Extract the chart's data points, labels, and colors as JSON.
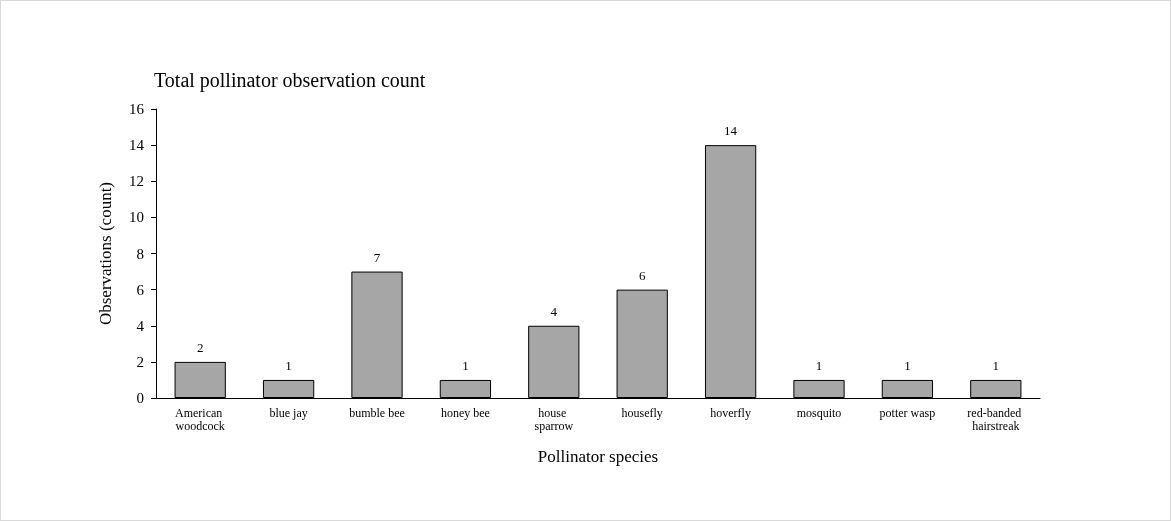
{
  "chart_data": {
    "type": "bar",
    "title": "Total pollinator observation count",
    "xlabel": "Pollinator species",
    "ylabel": "Observations (count)",
    "categories": [
      "American woodcock",
      "blue jay",
      "bumble bee",
      "honey bee",
      "house sparrow",
      "housefly",
      "hoverfly",
      "mosquito",
      "potter wasp",
      "red-banded hairstreak"
    ],
    "values": [
      2,
      1,
      7,
      1,
      4,
      6,
      14,
      1,
      1,
      1
    ],
    "color": "#a6a6a6",
    "ylim": [
      0,
      16
    ],
    "yticks": [
      0,
      2,
      4,
      6,
      8,
      10,
      12,
      14,
      16
    ],
    "grid": false,
    "data_labels": true
  }
}
